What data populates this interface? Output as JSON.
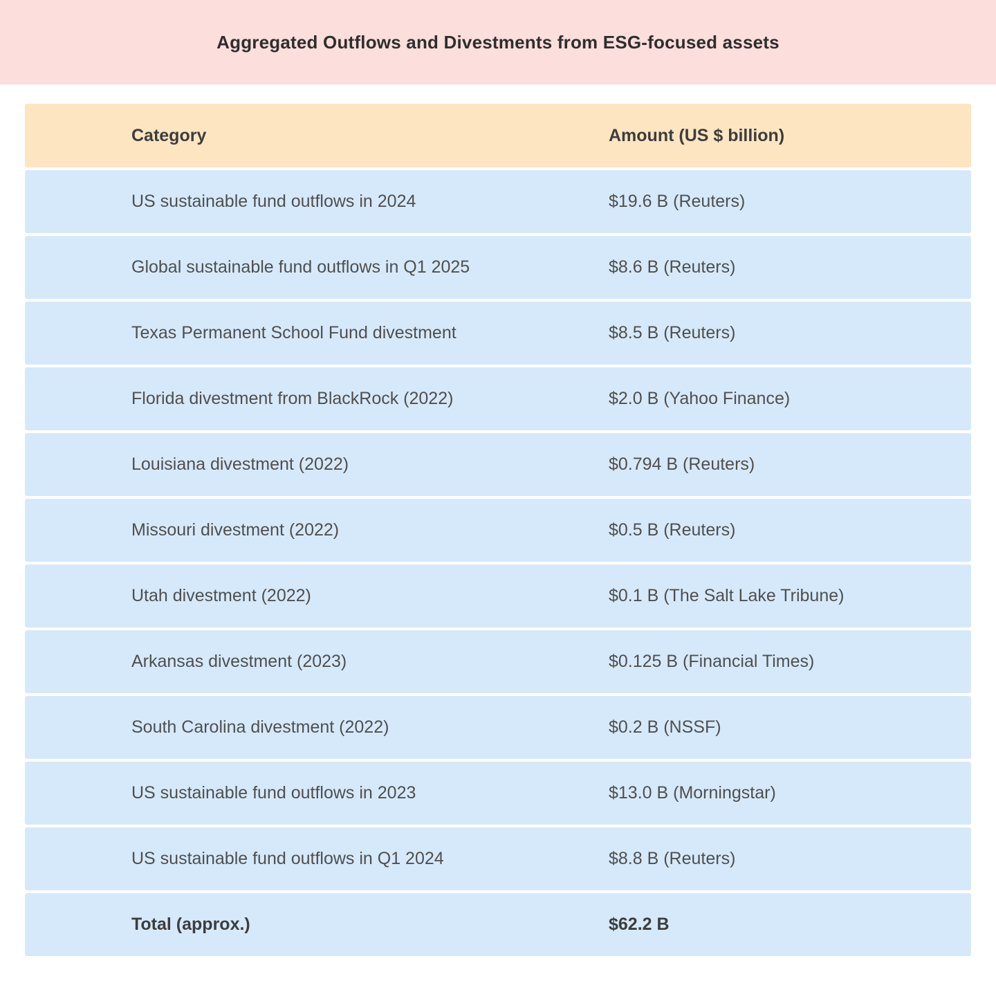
{
  "title": "Aggregated Outflows and Divestments from ESG-focused assets",
  "table": {
    "headers": {
      "category": "Category",
      "amount": "Amount (US $ billion)"
    },
    "rows": [
      {
        "category": "US sustainable fund outflows in 2024",
        "amount": "$19.6 B (Reuters)"
      },
      {
        "category": "Global sustainable fund outflows in Q1 2025",
        "amount": "$8.6 B (Reuters)"
      },
      {
        "category": "Texas Permanent School Fund divestment",
        "amount": "$8.5 B (Reuters)"
      },
      {
        "category": "Florida divestment from BlackRock (2022)",
        "amount": "$2.0 B (Yahoo Finance)"
      },
      {
        "category": "Louisiana divestment (2022)",
        "amount": "$0.794 B (Reuters)"
      },
      {
        "category": "Missouri divestment (2022)",
        "amount": "$0.5 B (Reuters)"
      },
      {
        "category": "Utah divestment (2022)",
        "amount": "$0.1 B (The Salt Lake Tribune)"
      },
      {
        "category": "Arkansas divestment (2023)",
        "amount": "$0.125 B (Financial Times)"
      },
      {
        "category": "South Carolina divestment (2022)",
        "amount": "$0.2 B (NSSF)"
      },
      {
        "category": "US sustainable fund outflows in 2023",
        "amount": "$13.0 B (Morningstar)"
      },
      {
        "category": "US sustainable fund outflows in Q1 2024",
        "amount": "$8.8 B (Reuters)"
      }
    ],
    "total": {
      "category": "Total (approx.)",
      "amount": "$62.2 B"
    }
  },
  "colors": {
    "title_band_bg": "#FCDEDD",
    "header_row_bg": "#FDE5C2",
    "data_row_bg": "#D6E9FA",
    "title_text": "#2E2E2E",
    "header_text": "#3D3D3D",
    "body_text": "#4F4F4F"
  },
  "chart_data": {
    "type": "table",
    "title": "Aggregated Outflows and Divestments from ESG-focused assets",
    "columns": [
      "Category",
      "Amount (US $ billion)"
    ],
    "categories": [
      "US sustainable fund outflows in 2024",
      "Global sustainable fund outflows in Q1 2025",
      "Texas Permanent School Fund divestment",
      "Florida divestment from BlackRock (2022)",
      "Louisiana divestment (2022)",
      "Missouri divestment (2022)",
      "Utah divestment (2022)",
      "Arkansas divestment (2023)",
      "South Carolina divestment (2022)",
      "US sustainable fund outflows in 2023",
      "US sustainable fund outflows in Q1 2024"
    ],
    "values": [
      19.6,
      8.6,
      8.5,
      2.0,
      0.794,
      0.5,
      0.1,
      0.125,
      0.2,
      13.0,
      8.8
    ],
    "sources": [
      "Reuters",
      "Reuters",
      "Reuters",
      "Yahoo Finance",
      "Reuters",
      "Reuters",
      "The Salt Lake Tribune",
      "Financial Times",
      "NSSF",
      "Morningstar",
      "Reuters"
    ],
    "total": 62.2,
    "total_label": "Total (approx.)"
  }
}
